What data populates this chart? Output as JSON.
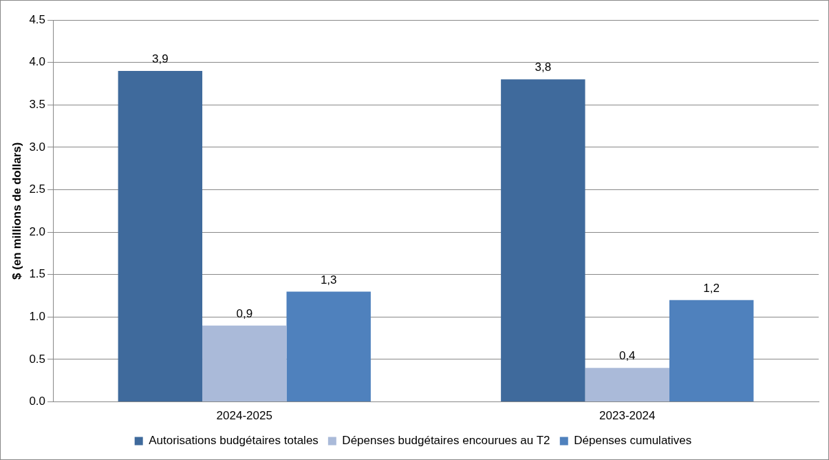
{
  "chart_data": {
    "type": "bar",
    "ylabel": "$ (en millions de dollars)",
    "categories": [
      "2024-2025",
      "2023-2024"
    ],
    "series": [
      {
        "name": "Autorisations budgétaires totales",
        "color": "#3f6a9c",
        "values": [
          3.9,
          3.8
        ],
        "value_labels": [
          "3,9",
          "3,8"
        ]
      },
      {
        "name": "Dépenses budgétaires encourues au T2",
        "color": "#aabad9",
        "values": [
          0.9,
          0.4
        ],
        "value_labels": [
          "0,9",
          "0,4"
        ]
      },
      {
        "name": "Dépenses cumulatives",
        "color": "#4f81bd",
        "values": [
          1.3,
          1.2
        ],
        "value_labels": [
          "1,3",
          "1,2"
        ]
      }
    ],
    "ylim": [
      0,
      4.5
    ],
    "yticks": [
      {
        "value": 0,
        "label": "0.0"
      },
      {
        "value": 0.5,
        "label": "0.5"
      },
      {
        "value": 1,
        "label": "1.0"
      },
      {
        "value": 1.5,
        "label": "1.5"
      },
      {
        "value": 2,
        "label": "2.0"
      },
      {
        "value": 2.5,
        "label": "2.5"
      },
      {
        "value": 3,
        "label": "3.0"
      },
      {
        "value": 3.5,
        "label": "3.5"
      },
      {
        "value": 4,
        "label": "4.0"
      },
      {
        "value": 4.5,
        "label": "4.5"
      }
    ],
    "grid": "y",
    "legend": "bottom"
  }
}
